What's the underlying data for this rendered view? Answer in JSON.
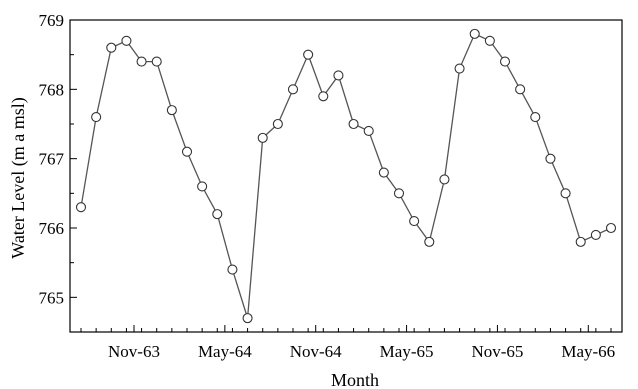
{
  "chart_data": {
    "type": "line",
    "title": "",
    "xlabel": "Month",
    "ylabel": "Water Level (m a msl)",
    "ylim": [
      764.5,
      769
    ],
    "yticks": [
      765,
      766,
      767,
      768,
      769
    ],
    "xticks": [
      {
        "label": "Nov-63",
        "index": 3.5
      },
      {
        "label": "May-64",
        "index": 9.5
      },
      {
        "label": "Nov-64",
        "index": 15.5
      },
      {
        "label": "May-65",
        "index": 21.5
      },
      {
        "label": "Nov-65",
        "index": 27.5
      },
      {
        "label": "May-66",
        "index": 33.5
      }
    ],
    "grid": false,
    "legend": "none",
    "series": [
      {
        "values": [
          766.3,
          767.6,
          768.6,
          768.7,
          768.4,
          768.4,
          767.7,
          767.1,
          766.6,
          766.2,
          765.4,
          764.7,
          767.3,
          767.5,
          768.0,
          768.5,
          767.9,
          768.2,
          767.5,
          767.4,
          766.8,
          766.5,
          766.1,
          765.8,
          766.7,
          768.3,
          768.8,
          768.7,
          768.4,
          768.0,
          767.6,
          767.0,
          766.5,
          765.8,
          765.9,
          766.0
        ]
      }
    ],
    "colors": {
      "line": "#555555",
      "marker_fill": "#ffffff",
      "marker_stroke": "#333333",
      "axis": "#000000"
    }
  }
}
